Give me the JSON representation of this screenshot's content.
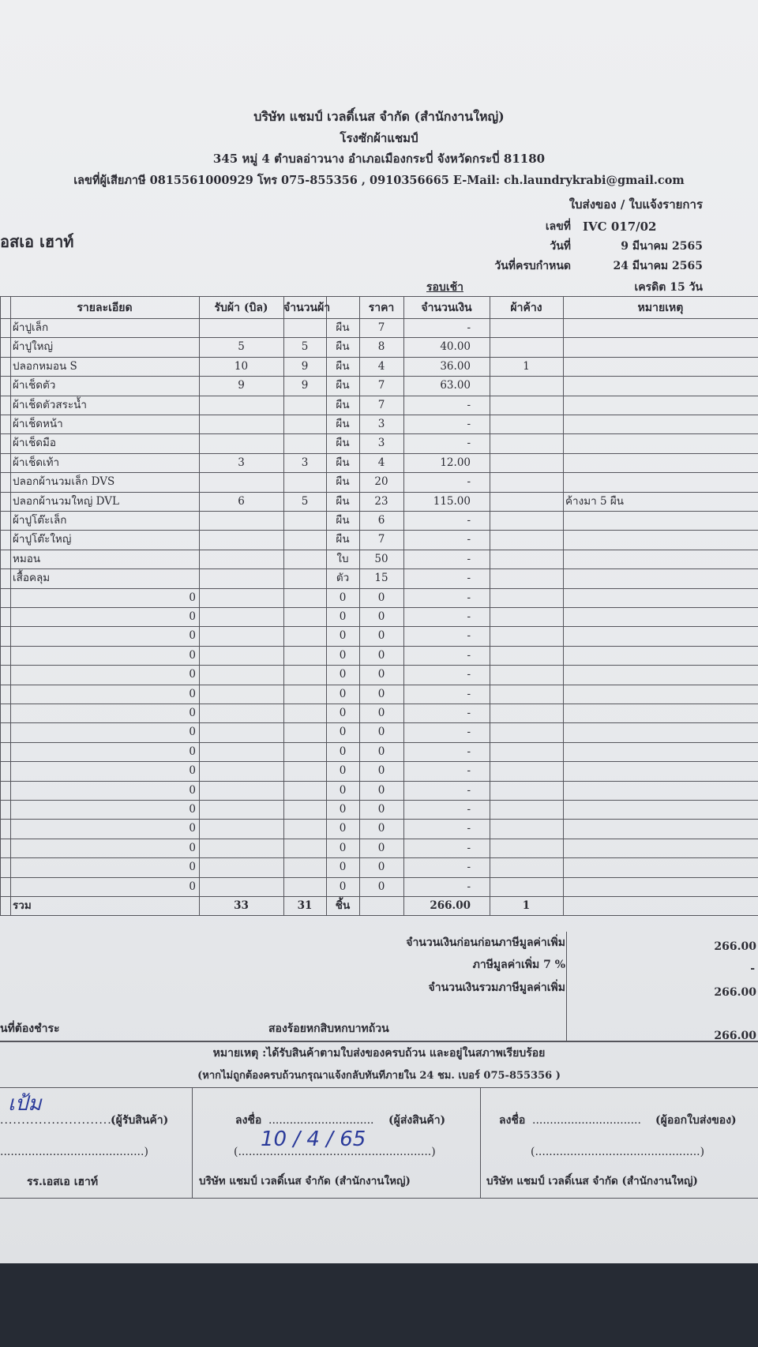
{
  "header": {
    "company": "บริษัท แชมป์ เวลดิ์เนส จำกัด (สำนักงานใหญ่)",
    "branch": "โรงซักผ้าแชมป์",
    "address": "345 หมู่ 4 ตำบลอ่าวนาง อำเภอเมืองกระบี่ จังหวัดกระบี่ 81180",
    "contact": "เลขที่ผู้เสียภาษี 0815561000929 โทร 075-855356 , 0910356665 E-Mail: ch.laundrykrabi@gmail.com",
    "doc_title": "ใบส่งของ / ใบแจ้งรายการ",
    "customer": "อสเอ เฮาท์",
    "number_label": "เลขที่",
    "number": "IVC 017/02",
    "date_label": "วันที่",
    "date": "9 มีนาคม 2565",
    "due_label": "วันที่ครบกำหนด",
    "due": "24 มีนาคม 2565",
    "round": "รอบเช้า",
    "credit": "เครดิต 15 วัน"
  },
  "table": {
    "headers": [
      "รายละเอียด",
      "รับผ้า (บิล)",
      "จำนวนผ้า",
      "ราคา",
      "จำนวนเงิน",
      "ผ้าค้าง",
      "หมายเหตุ"
    ],
    "rows": [
      [
        "ผ้าปูเล็ก",
        null,
        null,
        "ผืน",
        "7",
        "-",
        null,
        null
      ],
      [
        "ผ้าปูใหญ่",
        "5",
        "5",
        "ผืน",
        "8",
        "40.00",
        null,
        null
      ],
      [
        "ปลอกหมอน S",
        "10",
        "9",
        "ผืน",
        "4",
        "36.00",
        "1",
        null
      ],
      [
        "ผ้าเช็ดตัว",
        "9",
        "9",
        "ผืน",
        "7",
        "63.00",
        null,
        null
      ],
      [
        "ผ้าเช็ดตัวสระน้ำ",
        null,
        null,
        "ผืน",
        "7",
        "-",
        null,
        null
      ],
      [
        "ผ้าเช็ดหน้า",
        null,
        null,
        "ผืน",
        "3",
        "-",
        null,
        null
      ],
      [
        "ผ้าเช็ดมือ",
        null,
        null,
        "ผืน",
        "3",
        "-",
        null,
        null
      ],
      [
        "ผ้าเช็ดเท้า",
        "3",
        "3",
        "ผืน",
        "4",
        "12.00",
        null,
        null
      ],
      [
        "ปลอกผ้านวมเล็ก DVS",
        null,
        null,
        "ผืน",
        "20",
        "-",
        null,
        null
      ],
      [
        "ปลอกผ้านวมใหญ่ DVL",
        "6",
        "5",
        "ผืน",
        "23",
        "115.00",
        null,
        "ค้างมา 5 ผืน"
      ],
      [
        "ผ้าปูโต๊ะเล็ก",
        null,
        null,
        "ผืน",
        "6",
        "-",
        null,
        null
      ],
      [
        "ผ้าปูโต๊ะใหญ่",
        null,
        null,
        "ผืน",
        "7",
        "-",
        null,
        null
      ],
      [
        "หมอน",
        null,
        null,
        "ใบ",
        "50",
        "-",
        null,
        null
      ],
      [
        "เสื้อคลุม",
        null,
        null,
        "ตัว",
        "15",
        "-",
        null,
        null
      ],
      [
        "0",
        null,
        null,
        "0",
        "0",
        "-",
        null,
        null
      ],
      [
        "0",
        null,
        null,
        "0",
        "0",
        "-",
        null,
        null
      ],
      [
        "0",
        null,
        null,
        "0",
        "0",
        "-",
        null,
        null
      ],
      [
        "0",
        null,
        null,
        "0",
        "0",
        "-",
        null,
        null
      ],
      [
        "0",
        null,
        null,
        "0",
        "0",
        "-",
        null,
        null
      ],
      [
        "0",
        null,
        null,
        "0",
        "0",
        "-",
        null,
        null
      ],
      [
        "0",
        null,
        null,
        "0",
        "0",
        "-",
        null,
        null
      ],
      [
        "0",
        null,
        null,
        "0",
        "0",
        "-",
        null,
        null
      ],
      [
        "0",
        null,
        null,
        "0",
        "0",
        "-",
        null,
        null
      ],
      [
        "0",
        null,
        null,
        "0",
        "0",
        "-",
        null,
        null
      ],
      [
        "0",
        null,
        null,
        "0",
        "0",
        "-",
        null,
        null
      ],
      [
        "0",
        null,
        null,
        "0",
        "0",
        "-",
        null,
        null
      ],
      [
        "0",
        null,
        null,
        "0",
        "0",
        "-",
        null,
        null
      ],
      [
        "0",
        null,
        null,
        "0",
        "0",
        "-",
        null,
        null
      ],
      [
        "0",
        null,
        null,
        "0",
        "0",
        "-",
        null,
        null
      ],
      [
        "0",
        null,
        null,
        "0",
        "0",
        "-",
        null,
        null
      ]
    ],
    "total": [
      "รวม",
      "33",
      "31",
      "ชิ้น",
      null,
      "266.00",
      "1",
      null
    ]
  },
  "summary": {
    "subtotal_label": "จำนวนเงินก่อนก่อนภาษีมูลค่าเพิ่ม",
    "subtotal": "266.00",
    "vat_label": "ภาษีมูลค่าเพิ่ม 7 %",
    "vat": "-",
    "grand_label": "จำนวนเงินรวมภาษีมูลค่าเพิ่ม",
    "grand": "266.00",
    "payable_label": "นที่ต้องชำระ",
    "payable_words": "สองร้อยหกสิบหกบาทถ้วน",
    "payable": "266.00"
  },
  "notes": {
    "line1": "หมายเหตุ :ได้รับสินค้าตามใบส่งของครบถ้วน และอยู่ในสภาพเรียบร้อย",
    "line2": "(หากไม่ถูกต้องครบถ้วนกรุณาแจ้งกลับทันทีภายใน 24 ชม. เบอร์ 075-855356 )"
  },
  "signatures": {
    "receiver_role": "(ผู้รับสินค้า)",
    "receiver_name": "รร.เอสเอ เฮาท์",
    "receiver_hand": "เป้ม",
    "sign_label": "ลงชื่อ",
    "sender_role": "(ผู้ส่งสินค้า)",
    "sender_date": "10 / 4 / 65",
    "sender_company": "บริษัท แชมป์ เวลดิ์เนส จำกัด (สำนักงานใหญ่)",
    "issuer_sign_label": "ลงชื่อ",
    "issuer_role": "(ผู้ออกใบส่งของ)",
    "issuer_company": "บริษัท แชมป์ เวลดิ์เนส จำกัด (สำนักงานใหญ่)"
  }
}
